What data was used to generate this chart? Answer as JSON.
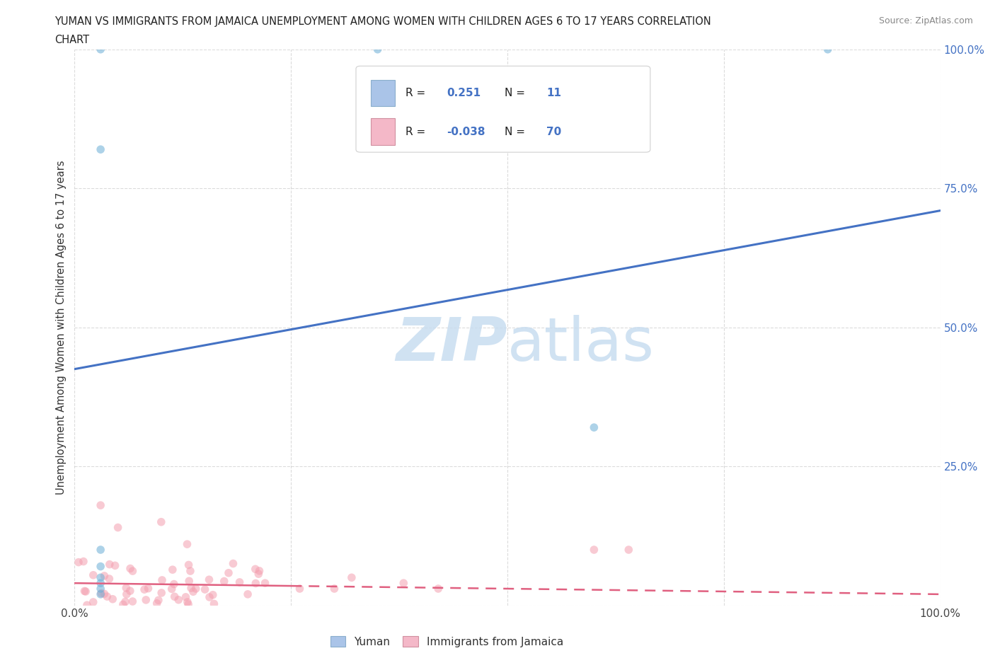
{
  "title_line1": "YUMAN VS IMMIGRANTS FROM JAMAICA UNEMPLOYMENT AMONG WOMEN WITH CHILDREN AGES 6 TO 17 YEARS CORRELATION",
  "title_line2": "CHART",
  "source_text": "Source: ZipAtlas.com",
  "ylabel": "Unemployment Among Women with Children Ages 6 to 17 years",
  "x_lim": [
    0.0,
    1.0
  ],
  "y_lim": [
    0.0,
    1.0
  ],
  "legend_blue_color": "#aac4e8",
  "legend_pink_color": "#f4b8c8",
  "corr_box_color1": "#4472c4",
  "corr_box_color2": "#4472c4",
  "blue_dot_color": "#6baed6",
  "pink_dot_color": "#f4a0b0",
  "blue_line_color": "#4472c4",
  "pink_line_color": "#e06080",
  "watermark_color": "#c8ddf0",
  "background_color": "#ffffff",
  "blue_scatter_x": [
    0.03,
    0.35,
    0.87,
    0.03,
    0.03,
    0.03,
    0.03,
    0.03,
    0.03,
    0.6,
    0.03
  ],
  "blue_scatter_y": [
    1.0,
    1.0,
    1.0,
    0.82,
    0.1,
    0.07,
    0.05,
    0.04,
    0.03,
    0.32,
    0.02
  ],
  "blue_trend_y_start": 0.425,
  "blue_trend_y_end": 0.71,
  "pink_trend_y_start": 0.04,
  "pink_trend_y_end": 0.02,
  "dot_size": 70,
  "dot_alpha": 0.55,
  "grid_color": "#cccccc",
  "grid_alpha": 0.7
}
